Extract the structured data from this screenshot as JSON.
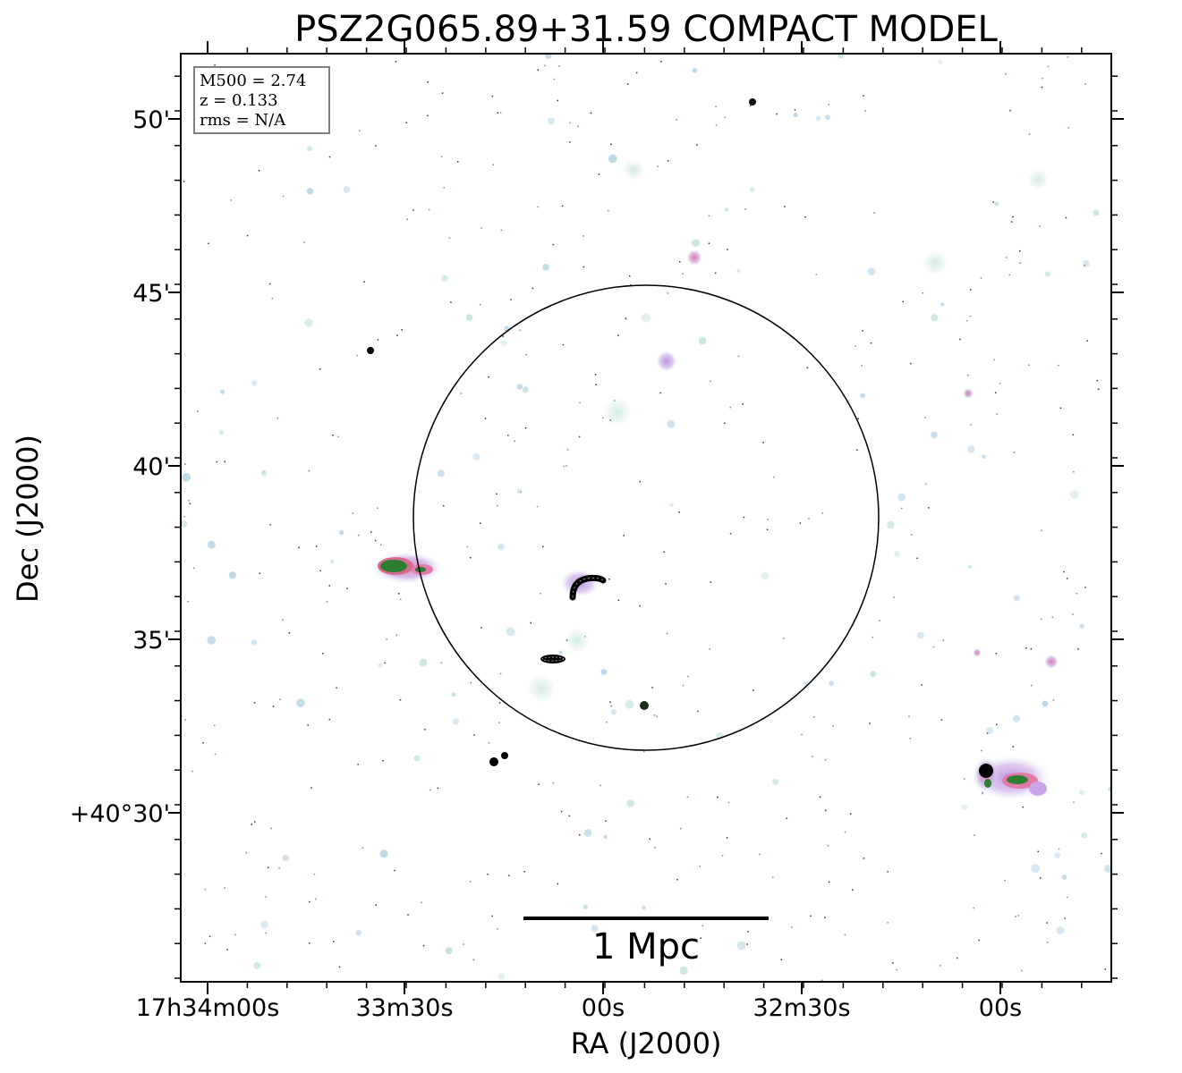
{
  "title": "PSZ2G065.89+31.59 COMPACT MODEL",
  "axes": {
    "xlabel": "RA (J2000)",
    "ylabel": "Dec (J2000)",
    "x_ticks": [
      "17h34m00s",
      "33m30s",
      "00s",
      "32m30s",
      "00s"
    ],
    "y_ticks": [
      "50'",
      "45'",
      "40'",
      "35'",
      "+40°30'"
    ]
  },
  "info_box": {
    "mass": "M500 = 2.74",
    "redshift": "z = 0.133",
    "rms": "rms = N/A"
  },
  "scale_bar": {
    "label": "1 Mpc"
  },
  "colors": {
    "background": "#ffffff",
    "frame": "#000000",
    "halo": "#cfe9e3",
    "emission_pink": "#e8a0c0",
    "emission_purple": "#a78bd4",
    "emission_green": "#2e7d32",
    "emission_core": "#000000",
    "legend_border": "#808080"
  }
}
